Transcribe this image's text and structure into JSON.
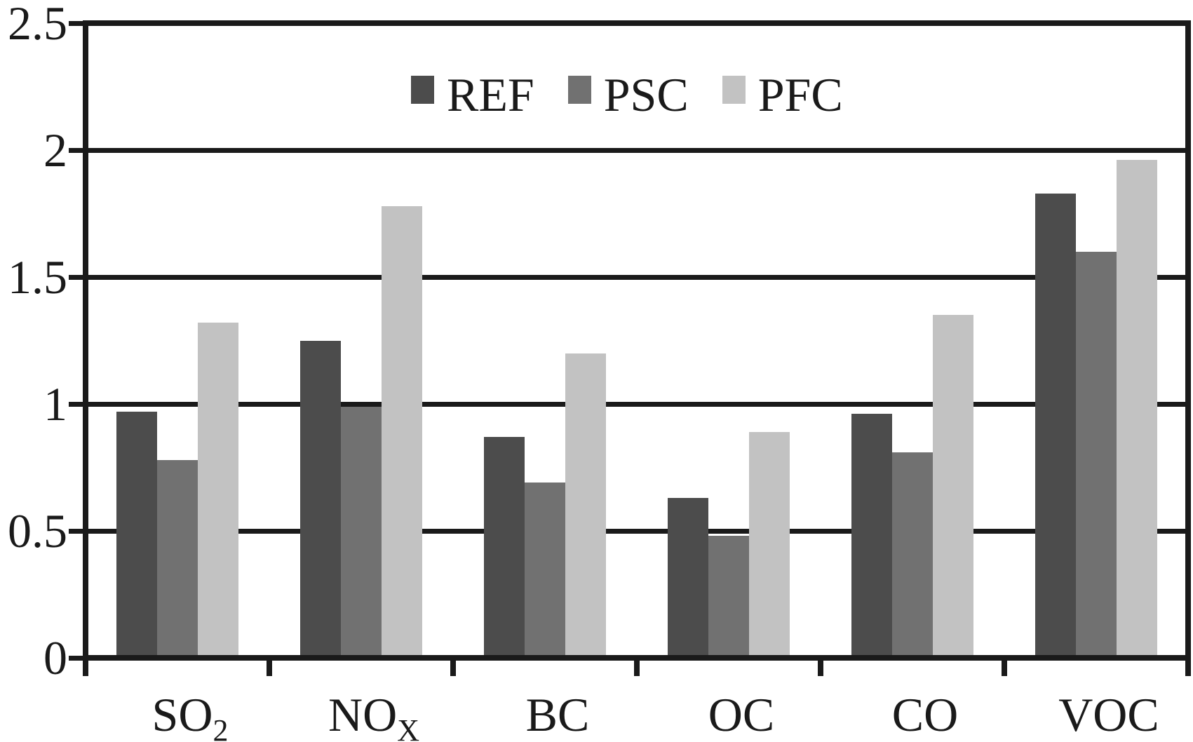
{
  "chart_data": {
    "type": "bar",
    "title": "",
    "categories": [
      {
        "label": "SO",
        "subscript": "2"
      },
      {
        "label": "NO",
        "subscript": "X"
      },
      {
        "label": "BC",
        "subscript": ""
      },
      {
        "label": "OC",
        "subscript": ""
      },
      {
        "label": "CO",
        "subscript": ""
      },
      {
        "label": "VOC",
        "subscript": ""
      }
    ],
    "series": [
      {
        "name": "REF",
        "color": "#4c4c4c",
        "values": [
          0.97,
          1.25,
          0.87,
          0.63,
          0.96,
          1.83
        ]
      },
      {
        "name": "PSC",
        "color": "#717171",
        "values": [
          0.78,
          0.99,
          0.69,
          0.48,
          0.81,
          1.6
        ]
      },
      {
        "name": "PFC",
        "color": "#c2c2c2",
        "values": [
          1.32,
          1.78,
          1.2,
          0.89,
          1.35,
          1.96
        ]
      }
    ],
    "y_axis": {
      "min": 0,
      "max": 2.5,
      "tick_step": 0.5,
      "tick_labels": [
        "0",
        "0.5",
        "1",
        "1.5",
        "2",
        "2.5"
      ]
    },
    "legend": {
      "position": "top-center",
      "entries": [
        "REF",
        "PSC",
        "PFC"
      ]
    },
    "grid": true,
    "axis_color": "#1a1a1a",
    "background_color": "#ffffff"
  }
}
